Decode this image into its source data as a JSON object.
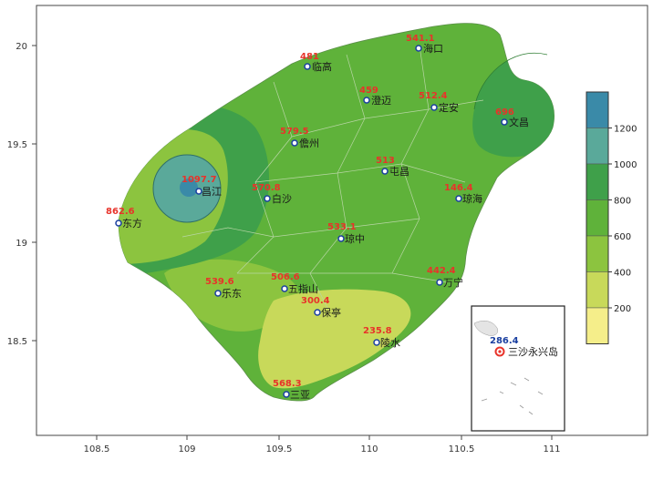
{
  "colors": {
    "c0": "#f5ee8a",
    "c200": "#c8d95a",
    "c400": "#8cc43f",
    "c600": "#5fb23a",
    "c800": "#3fa04a",
    "c1000": "#5aa99a",
    "c1200": "#3a8aa8"
  },
  "x_ticks": [
    "108.5",
    "109",
    "109.5",
    "110",
    "110.5",
    "111"
  ],
  "y_ticks": [
    "20",
    "19.5",
    "19",
    "18.5"
  ],
  "colorbar_ticks": [
    "1200",
    "1000",
    "800",
    "600",
    "400",
    "200"
  ],
  "stations": [
    {
      "name": "海口",
      "value": "541.1"
    },
    {
      "name": "临高",
      "value": "481"
    },
    {
      "name": "澄迈",
      "value": "459"
    },
    {
      "name": "定安",
      "value": "512.4"
    },
    {
      "name": "文昌",
      "value": "696"
    },
    {
      "name": "儋州",
      "value": "579.5"
    },
    {
      "name": "屯昌",
      "value": "513"
    },
    {
      "name": "昌江",
      "value": "1097.7"
    },
    {
      "name": "白沙",
      "value": "570.8"
    },
    {
      "name": "琼海",
      "value": "146.4"
    },
    {
      "name": "东方",
      "value": "862.6"
    },
    {
      "name": "琼中",
      "value": "533.1"
    },
    {
      "name": "乐东",
      "value": "539.6"
    },
    {
      "name": "五指山",
      "value": "506.6"
    },
    {
      "name": "万宁",
      "value": "442.4"
    },
    {
      "name": "保亭",
      "value": "300.4"
    },
    {
      "name": "陵水",
      "value": "235.8"
    },
    {
      "name": "三亚",
      "value": "568.3"
    }
  ],
  "inset": {
    "label": "三沙永兴岛",
    "value": "286.4"
  }
}
